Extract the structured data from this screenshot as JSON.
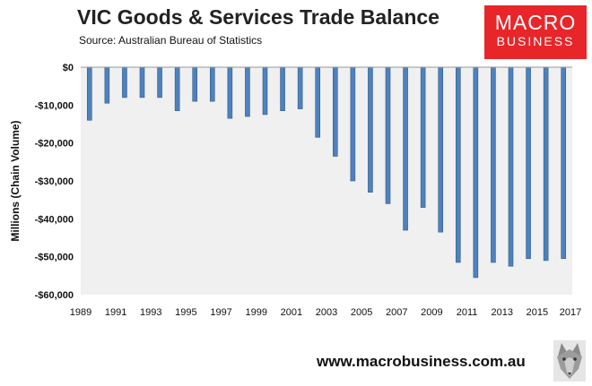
{
  "header": {
    "title": "VIC Goods & Services Trade Balance",
    "source": "Source:  Australian Bureau of Statistics"
  },
  "logo": {
    "line1": "MACRO",
    "line2": "BUSINESS"
  },
  "footer": {
    "url": "www.macrobusiness.com.au"
  },
  "colors": {
    "bar": "#4f81bd",
    "plot_bg": "#f0f0f0",
    "logo_bg": "#e8262a"
  },
  "chart_data": {
    "type": "bar",
    "title": "VIC Goods & Services Trade Balance",
    "subtitle": "Source:  Australian Bureau of Statistics",
    "xlabel": "",
    "ylabel": "Millions (Chain Volume)",
    "ylim": [
      -60000,
      0
    ],
    "yticks": [
      0,
      -10000,
      -20000,
      -30000,
      -40000,
      -50000,
      -60000
    ],
    "ytick_labels": [
      "$0",
      "-$10,000",
      "-$20,000",
      "-$30,000",
      "-$40,000",
      "-$50,000",
      "-$60,000"
    ],
    "xtick_labels": [
      "1989",
      "1991",
      "1993",
      "1995",
      "1997",
      "1999",
      "2001",
      "2003",
      "2005",
      "2007",
      "2009",
      "2011",
      "2013",
      "2015",
      "2017"
    ],
    "grid": false,
    "categories": [
      "1990",
      "1991",
      "1992",
      "1993",
      "1994",
      "1995",
      "1996",
      "1997",
      "1998",
      "1999",
      "2000",
      "2001",
      "2002",
      "2003",
      "2004",
      "2005",
      "2006",
      "2007",
      "2008",
      "2009",
      "2010",
      "2011",
      "2012",
      "2013",
      "2014",
      "2015",
      "2016",
      "2017"
    ],
    "values": [
      -14000,
      -9500,
      -8000,
      -8000,
      -8000,
      -11500,
      -9000,
      -9000,
      -13500,
      -13000,
      -12500,
      -11500,
      -11000,
      -18500,
      -23500,
      -30000,
      -33000,
      -36000,
      -43000,
      -37000,
      -43500,
      -51500,
      -55500,
      -51500,
      -52500,
      -50500,
      -51000,
      -50500
    ]
  }
}
